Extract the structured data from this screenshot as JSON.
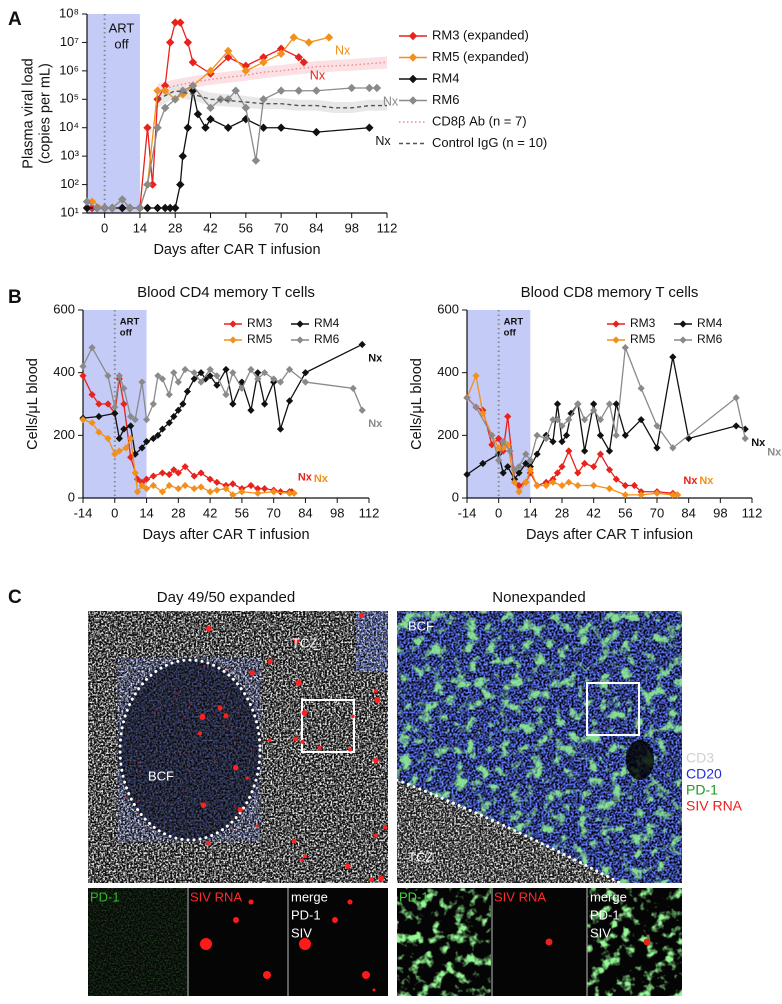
{
  "panels": [
    "A",
    "B",
    "C"
  ],
  "chart_data": [
    {
      "type": "line",
      "yscale": "log",
      "xlabel": "Days after CAR T infusion",
      "ylabel": [
        "Plasma viral load",
        "(copies per mL)"
      ],
      "xlim": [
        -7,
        112
      ],
      "xticks": [
        0,
        14,
        28,
        42,
        56,
        70,
        84,
        98,
        112
      ],
      "ylim": [
        10,
        100000000
      ],
      "yticks": [
        {
          "value": 10,
          "label": "10¹"
        },
        {
          "value": 100,
          "label": "10²"
        },
        {
          "value": 1000,
          "label": "10³"
        },
        {
          "value": 10000,
          "label": "10⁴"
        },
        {
          "value": 100000,
          "label": "10⁵"
        },
        {
          "value": 1000000,
          "label": "10⁶"
        },
        {
          "value": 10000000,
          "label": "10⁷"
        },
        {
          "value": 100000000,
          "label": "10⁸"
        }
      ],
      "shade": {
        "range": [
          -7,
          14
        ],
        "label": [
          "ART",
          "off"
        ],
        "color": "#c3cbf6"
      },
      "vline": 0,
      "legend": "right",
      "legend_columns": 1,
      "series": [
        {
          "name": "RM3 (expanded)",
          "color": "#e8221d",
          "marker": "diamond",
          "end_label": "Nx",
          "x": [
            -5,
            0,
            3,
            7,
            10,
            14,
            17,
            19,
            21,
            24,
            26,
            28,
            30,
            33,
            35,
            42,
            49,
            56,
            63,
            70,
            77,
            79
          ],
          "values": [
            15,
            15,
            15,
            15,
            15,
            15,
            10000,
            100,
            100000,
            300000,
            10000000,
            50000000,
            50000000,
            10000000,
            2000000,
            800000,
            3000000,
            1500000,
            3000000,
            6000000,
            3000000,
            2000000
          ]
        },
        {
          "name": "RM5 (expanded)",
          "color": "#f39019",
          "marker": "diamond",
          "end_label": "Nx",
          "x": [
            -5,
            0,
            3,
            7,
            10,
            14,
            17,
            21,
            24,
            28,
            31,
            35,
            42,
            49,
            56,
            63,
            70,
            75,
            81,
            89
          ],
          "values": [
            25,
            15,
            15,
            30,
            15,
            15,
            100,
            200000,
            200000,
            100000,
            150000,
            300000,
            1000000,
            5000000,
            1000000,
            2000000,
            4000000,
            15000000,
            10000000,
            15000000
          ]
        },
        {
          "name": "RM4",
          "color": "#111111",
          "marker": "diamond",
          "end_label": "Nx",
          "x": [
            -7,
            -3,
            0,
            3,
            7,
            10,
            14,
            17,
            21,
            24,
            26,
            28,
            30,
            31,
            33,
            35,
            37,
            40,
            42,
            49,
            56,
            63,
            70,
            84,
            105
          ],
          "values": [
            15,
            15,
            15,
            15,
            15,
            15,
            15,
            15,
            15,
            15,
            15,
            15,
            100,
            1000,
            10000,
            200000,
            30000,
            10000,
            20000,
            10000,
            20000,
            10000,
            10000,
            7000,
            10000
          ]
        },
        {
          "name": "RM6",
          "color": "#8a8a8a",
          "marker": "diamond",
          "end_label": "Nx",
          "x": [
            -7,
            -3,
            0,
            3,
            7,
            10,
            14,
            17,
            21,
            24,
            28,
            31,
            35,
            42,
            46,
            49,
            52,
            56,
            60,
            63,
            70,
            77,
            84,
            98,
            105,
            108
          ],
          "values": [
            25,
            15,
            15,
            15,
            30,
            15,
            15,
            100,
            10000,
            50000,
            100000,
            200000,
            300000,
            50000,
            100000,
            100000,
            200000,
            50000,
            700,
            100000,
            200000,
            200000,
            200000,
            250000,
            250000,
            250000
          ]
        },
        {
          "name": "CD8β Ab (n = 7)",
          "color": "#f08a92",
          "dash": "dotted",
          "band_color": "#fadadc",
          "x": [
            21,
            28,
            35,
            42,
            49,
            56,
            63,
            70,
            77,
            84,
            91,
            98,
            105,
            112
          ],
          "values": [
            200000,
            300000,
            400000,
            500000,
            600000,
            700000,
            900000,
            1000000,
            1200000,
            1400000,
            1500000,
            1600000,
            1800000,
            2000000
          ],
          "lower": [
            120000,
            180000,
            250000,
            320000,
            380000,
            450000,
            550000,
            650000,
            750000,
            850000,
            950000,
            1000000,
            1100000,
            1200000
          ],
          "upper": [
            350000,
            500000,
            650000,
            800000,
            950000,
            1100000,
            1400000,
            1600000,
            1900000,
            2200000,
            2400000,
            2600000,
            2900000,
            3200000
          ]
        },
        {
          "name": "Control IgG (n = 10)",
          "color": "#555555",
          "dash": "dashed",
          "band_color": "#e2e2e2",
          "x": [
            21,
            28,
            35,
            42,
            49,
            56,
            63,
            70,
            77,
            84,
            91,
            98,
            105,
            112
          ],
          "values": [
            100000,
            200000,
            150000,
            100000,
            90000,
            80000,
            70000,
            70000,
            60000,
            60000,
            50000,
            50000,
            60000,
            60000
          ],
          "lower": [
            50000,
            120000,
            90000,
            60000,
            55000,
            50000,
            45000,
            45000,
            40000,
            40000,
            33000,
            33000,
            40000,
            40000
          ],
          "upper": [
            180000,
            320000,
            250000,
            170000,
            150000,
            130000,
            110000,
            110000,
            95000,
            95000,
            80000,
            80000,
            95000,
            95000
          ]
        }
      ]
    },
    {
      "type": "line",
      "title": "Blood CD4 memory T cells",
      "xlabel": "Days after CAR T infusion",
      "ylabel": [
        "Cells/μL blood"
      ],
      "xlim": [
        -14,
        112
      ],
      "xticks": [
        -14,
        0,
        14,
        28,
        42,
        56,
        70,
        84,
        98,
        112
      ],
      "ylim": [
        0,
        600
      ],
      "yticks": [
        0,
        200,
        400,
        600
      ],
      "shade": {
        "range": [
          -14,
          14
        ],
        "label": [
          "ART",
          "off"
        ],
        "color": "#c3cbf6"
      },
      "vline": 0,
      "legend": "upper right",
      "legend_columns": 2,
      "series": [
        {
          "name": "RM3",
          "color": "#e8221d",
          "marker": "diamond",
          "end_label": "Nx",
          "x": [
            -14,
            -10,
            -7,
            -3,
            0,
            2,
            4,
            7,
            10,
            12,
            14,
            17,
            21,
            24,
            26,
            28,
            31,
            35,
            38,
            42,
            45,
            49,
            52,
            56,
            60,
            63,
            66,
            70,
            73,
            77,
            78
          ],
          "values": [
            390,
            330,
            300,
            300,
            270,
            380,
            300,
            130,
            60,
            50,
            60,
            70,
            80,
            75,
            90,
            80,
            100,
            70,
            80,
            60,
            50,
            40,
            45,
            30,
            40,
            30,
            30,
            25,
            20,
            20,
            20
          ]
        },
        {
          "name": "RM4",
          "color": "#111111",
          "marker": "diamond",
          "end_label": "Nx",
          "x": [
            -14,
            -7,
            0,
            2,
            4,
            7,
            9,
            12,
            14,
            17,
            19,
            21,
            24,
            26,
            28,
            30,
            32,
            35,
            38,
            40,
            42,
            45,
            49,
            52,
            56,
            60,
            63,
            66,
            70,
            73,
            77,
            84,
            109
          ],
          "values": [
            255,
            260,
            270,
            190,
            220,
            230,
            140,
            160,
            180,
            190,
            200,
            220,
            240,
            260,
            280,
            300,
            340,
            380,
            400,
            380,
            390,
            360,
            410,
            300,
            370,
            280,
            400,
            300,
            370,
            220,
            310,
            400,
            490
          ]
        },
        {
          "name": "RM5",
          "color": "#f39019",
          "marker": "diamond",
          "end_label": "Nx",
          "x": [
            -14,
            -10,
            -7,
            -3,
            0,
            2,
            5,
            7,
            9,
            10,
            12,
            14,
            17,
            21,
            24,
            28,
            31,
            35,
            38,
            42,
            45,
            49,
            52,
            56,
            63,
            70,
            77,
            79
          ],
          "values": [
            250,
            240,
            210,
            190,
            140,
            150,
            160,
            190,
            80,
            20,
            40,
            30,
            40,
            20,
            40,
            30,
            40,
            30,
            35,
            20,
            25,
            30,
            10,
            20,
            15,
            20,
            15,
            15
          ]
        },
        {
          "name": "RM6",
          "color": "#8a8a8a",
          "marker": "diamond",
          "end_label": "Nx",
          "x": [
            -14,
            -10,
            -3,
            0,
            2,
            4,
            7,
            9,
            12,
            14,
            17,
            19,
            21,
            24,
            26,
            28,
            31,
            35,
            38,
            42,
            45,
            49,
            52,
            56,
            60,
            63,
            66,
            70,
            73,
            77,
            84,
            105,
            109
          ],
          "values": [
            420,
            480,
            390,
            290,
            390,
            350,
            260,
            250,
            370,
            250,
            300,
            390,
            380,
            330,
            400,
            370,
            410,
            400,
            370,
            410,
            390,
            330,
            400,
            350,
            410,
            380,
            400,
            380,
            370,
            410,
            370,
            350,
            280
          ]
        }
      ]
    },
    {
      "type": "line",
      "title": "Blood CD8 memory T cells",
      "xlabel": "Days after CAR T infusion",
      "ylabel": [
        "Cells/μL blood"
      ],
      "xlim": [
        -14,
        112
      ],
      "xticks": [
        -14,
        0,
        14,
        28,
        42,
        56,
        70,
        84,
        98,
        112
      ],
      "ylim": [
        0,
        600
      ],
      "yticks": [
        0,
        200,
        400,
        600
      ],
      "shade": {
        "range": [
          -14,
          14
        ],
        "label": [
          "ART",
          "off"
        ],
        "color": "#c3cbf6"
      },
      "vline": 0,
      "legend": "upper right",
      "legend_columns": 2,
      "series": [
        {
          "name": "RM3",
          "color": "#e8221d",
          "marker": "diamond",
          "end_label": "Nx",
          "x": [
            -14,
            -10,
            -7,
            -3,
            0,
            2,
            4,
            7,
            9,
            12,
            14,
            17,
            21,
            24,
            26,
            28,
            31,
            35,
            38,
            42,
            45,
            49,
            52,
            56,
            60,
            63,
            70,
            77,
            79
          ],
          "values": [
            320,
            290,
            280,
            170,
            190,
            150,
            260,
            60,
            40,
            50,
            80,
            40,
            50,
            60,
            80,
            100,
            150,
            80,
            110,
            100,
            140,
            90,
            60,
            40,
            40,
            20,
            20,
            15,
            10
          ]
        },
        {
          "name": "RM4",
          "color": "#111111",
          "marker": "diamond",
          "end_label": "Nx",
          "x": [
            -14,
            -7,
            0,
            2,
            4,
            7,
            9,
            12,
            14,
            17,
            21,
            24,
            26,
            28,
            30,
            32,
            35,
            38,
            42,
            45,
            49,
            52,
            56,
            63,
            70,
            77,
            84,
            105,
            109
          ],
          "values": [
            75,
            110,
            140,
            80,
            100,
            60,
            80,
            110,
            100,
            140,
            200,
            180,
            300,
            180,
            200,
            270,
            300,
            150,
            300,
            200,
            150,
            300,
            200,
            250,
            160,
            450,
            190,
            230,
            220
          ]
        },
        {
          "name": "RM5",
          "color": "#f39019",
          "marker": "diamond",
          "end_label": "Nx",
          "x": [
            -14,
            -10,
            -7,
            -3,
            0,
            2,
            4,
            7,
            9,
            12,
            14,
            17,
            21,
            24,
            28,
            31,
            35,
            42,
            49,
            56,
            63,
            70,
            77,
            79
          ],
          "values": [
            320,
            390,
            270,
            200,
            160,
            160,
            170,
            50,
            20,
            50,
            90,
            40,
            40,
            50,
            40,
            50,
            40,
            40,
            30,
            10,
            10,
            15,
            10,
            10
          ]
        },
        {
          "name": "RM6",
          "color": "#8a8a8a",
          "marker": "diamond",
          "end_label": "Nx",
          "x": [
            -14,
            -10,
            -3,
            0,
            2,
            5,
            7,
            9,
            12,
            14,
            17,
            21,
            24,
            26,
            28,
            31,
            35,
            38,
            42,
            45,
            49,
            52,
            56,
            63,
            70,
            77,
            105,
            109
          ],
          "values": [
            320,
            290,
            200,
            120,
            180,
            150,
            90,
            100,
            140,
            120,
            200,
            190,
            250,
            250,
            230,
            250,
            300,
            250,
            280,
            250,
            300,
            200,
            480,
            350,
            230,
            160,
            320,
            190
          ]
        }
      ]
    }
  ],
  "panel_c": {
    "images": [
      {
        "title": "Day 49/50 expanded",
        "labels": [
          "TCZ",
          "BCF"
        ],
        "insets": [
          "PD-1",
          "SIV RNA"
        ],
        "merge": [
          "merge",
          "PD-1",
          "SIV"
        ]
      },
      {
        "title": "Nonexpanded",
        "labels": [
          "BCF",
          "TCZ"
        ],
        "insets": [
          "PD-1",
          "SIV RNA"
        ],
        "merge": [
          "merge",
          "PD-1",
          "SIV"
        ]
      }
    ],
    "stains": [
      {
        "name": "CD3",
        "color": "#d0d0d0"
      },
      {
        "name": "CD20",
        "color": "#1f2fd6"
      },
      {
        "name": "PD-1",
        "color": "#1f9a1f"
      },
      {
        "name": "SIV RNA",
        "color": "#e8221d"
      }
    ]
  }
}
